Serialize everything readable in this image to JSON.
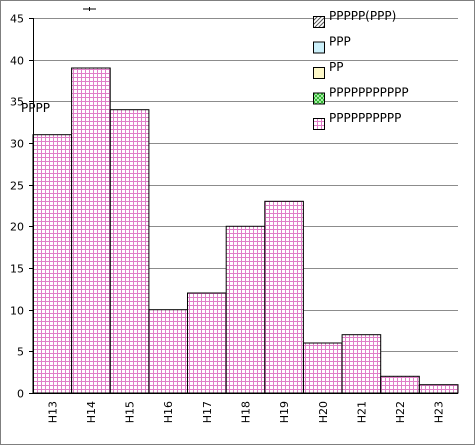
{
  "chart_data": {
    "type": "bar",
    "title": "",
    "xlabel": "",
    "ylabel": "PPPP",
    "categories": [
      "H13",
      "H14",
      "H15",
      "H16",
      "H17",
      "H18",
      "H19",
      "H20",
      "H21",
      "H22",
      "H23"
    ],
    "series": [
      {
        "name": "PPPPPPPPPP",
        "values": [
          31,
          39,
          34,
          10,
          12,
          20,
          23,
          6,
          7,
          2,
          1
        ]
      }
    ],
    "ylim": [
      0,
      45
    ],
    "yticks": [
      0,
      5,
      10,
      15,
      20,
      25,
      30,
      35,
      40,
      45
    ],
    "grid": true,
    "legend_position": "top-right",
    "legend": [
      {
        "label": "PPPPP(PPP)",
        "pattern": "diagonal-hatch",
        "color": "#ffffff"
      },
      {
        "label": "PPP",
        "pattern": "solid",
        "color": "#ccf0fa"
      },
      {
        "label": "PP",
        "pattern": "solid",
        "color": "#fdf8c8"
      },
      {
        "label": "PPPPPPPPPPP",
        "pattern": "checker",
        "color": "#33cc33"
      },
      {
        "label": "PPPPPPPPPP",
        "pattern": "pink-grid",
        "color": "#e07ec8"
      }
    ],
    "bar_fill_color": "#e07ec8"
  }
}
